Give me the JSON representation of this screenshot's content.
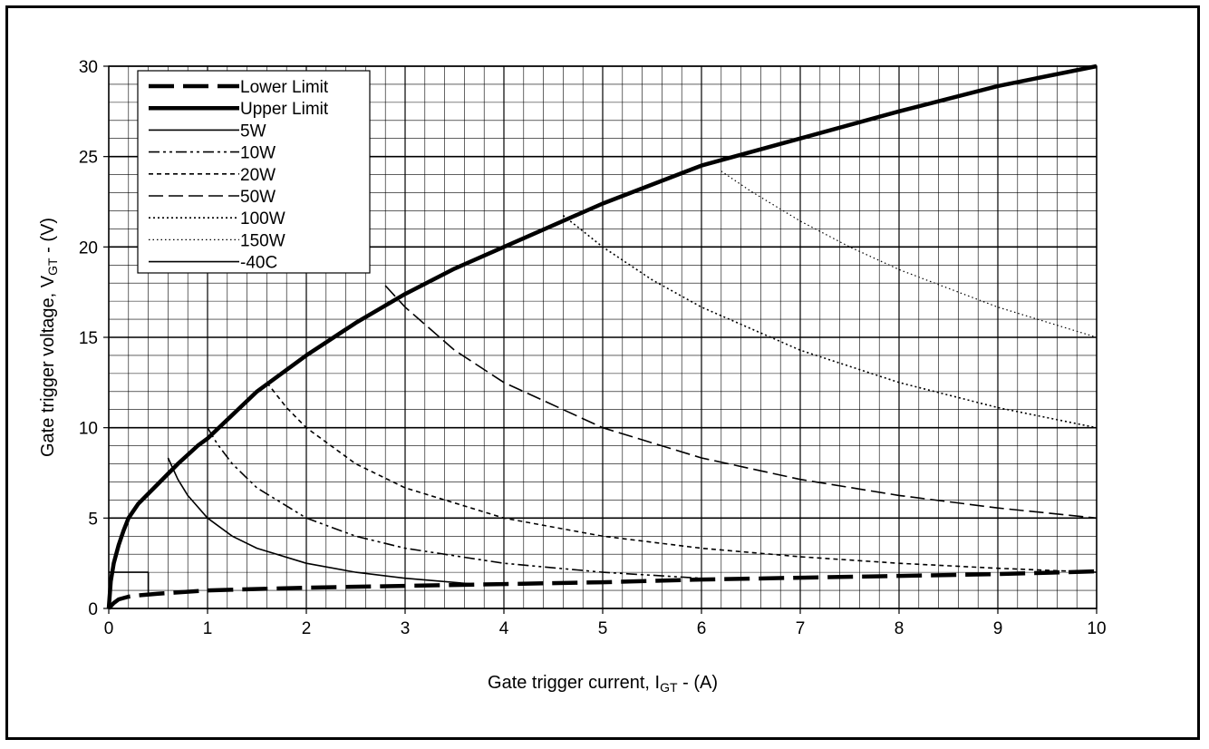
{
  "chart_data": {
    "type": "line",
    "title": "",
    "xlabel": {
      "prefix": "Gate trigger current,  I",
      "sub": "GT",
      "suffix": " - (A)"
    },
    "ylabel": {
      "prefix": "Gate trigger voltage,  V",
      "sub": "GT",
      "suffix": " - (V)"
    },
    "xlim": [
      0,
      10
    ],
    "ylim": [
      0,
      30
    ],
    "xticks": [
      "0",
      "1",
      "2",
      "3",
      "4",
      "5",
      "6",
      "7",
      "8",
      "9",
      "10"
    ],
    "yticks": [
      "0",
      "5",
      "10",
      "15",
      "20",
      "25",
      "30"
    ],
    "grid": true,
    "legend_position": "top-left",
    "series": [
      {
        "name": "Lower Limit",
        "style": "lower",
        "x": [
          0,
          0.05,
          0.1,
          0.2,
          0.3,
          0.5,
          1,
          2,
          3,
          4,
          5,
          6,
          7,
          8,
          9,
          10
        ],
        "y": [
          0,
          0.3,
          0.5,
          0.65,
          0.72,
          0.82,
          1.0,
          1.15,
          1.25,
          1.35,
          1.45,
          1.6,
          1.7,
          1.8,
          1.9,
          2.05
        ]
      },
      {
        "name": "Upper Limit",
        "style": "upper",
        "x": [
          0,
          0.02,
          0.05,
          0.1,
          0.15,
          0.2,
          0.3,
          0.5,
          0.7,
          0.9,
          1,
          1.5,
          2,
          2.5,
          3,
          3.5,
          4,
          5,
          6,
          7,
          8,
          9,
          10
        ],
        "y": [
          0,
          1.5,
          2.5,
          3.5,
          4.3,
          5.0,
          5.8,
          6.9,
          8.0,
          9.0,
          9.4,
          12.0,
          14.0,
          15.8,
          17.4,
          18.8,
          20.0,
          22.4,
          24.5,
          26.0,
          27.5,
          28.9,
          30.0
        ]
      },
      {
        "name": "5W",
        "style": "w5",
        "x": [
          0.6,
          0.7,
          0.8,
          1.0,
          1.25,
          1.5,
          2.0,
          2.5,
          3.0,
          3.65
        ],
        "y": [
          8.33,
          7.14,
          6.25,
          5.0,
          4.0,
          3.33,
          2.5,
          2.0,
          1.67,
          1.37
        ]
      },
      {
        "name": "10W",
        "style": "w10",
        "x": [
          1.0,
          1.1,
          1.25,
          1.5,
          2.0,
          2.5,
          3.0,
          4.0,
          5.0,
          6.0
        ],
        "y": [
          10.0,
          9.09,
          8.0,
          6.67,
          5.0,
          4.0,
          3.33,
          2.5,
          2.0,
          1.67
        ]
      },
      {
        "name": "20W",
        "style": "w20",
        "x": [
          1.6,
          1.8,
          2.0,
          2.5,
          3.0,
          4.0,
          5.0,
          6.0,
          7.0,
          8.0,
          9.0,
          10.0
        ],
        "y": [
          12.5,
          11.11,
          10.0,
          8.0,
          6.67,
          5.0,
          4.0,
          3.33,
          2.86,
          2.5,
          2.22,
          2.0
        ]
      },
      {
        "name": "50W",
        "style": "w50",
        "x": [
          2.8,
          3.0,
          3.5,
          4.0,
          5.0,
          6.0,
          7.0,
          8.0,
          9.0,
          10.0
        ],
        "y": [
          17.86,
          16.67,
          14.29,
          12.5,
          10.0,
          8.33,
          7.14,
          6.25,
          5.56,
          5.0
        ]
      },
      {
        "name": "100W",
        "style": "w100",
        "x": [
          4.6,
          5.0,
          5.5,
          6.0,
          7.0,
          8.0,
          9.0,
          10.0
        ],
        "y": [
          21.74,
          20.0,
          18.18,
          16.67,
          14.29,
          12.5,
          11.11,
          10.0
        ]
      },
      {
        "name": "150W",
        "style": "w150",
        "x": [
          6.2,
          6.5,
          7.0,
          7.5,
          8.0,
          9.0,
          10.0
        ],
        "y": [
          24.19,
          23.08,
          21.43,
          20.0,
          18.75,
          16.67,
          15.0
        ]
      },
      {
        "name": "-40C",
        "style": "m40",
        "x": [
          0,
          0.4,
          0.4
        ],
        "y": [
          2.0,
          2.0,
          0.8
        ]
      }
    ]
  }
}
